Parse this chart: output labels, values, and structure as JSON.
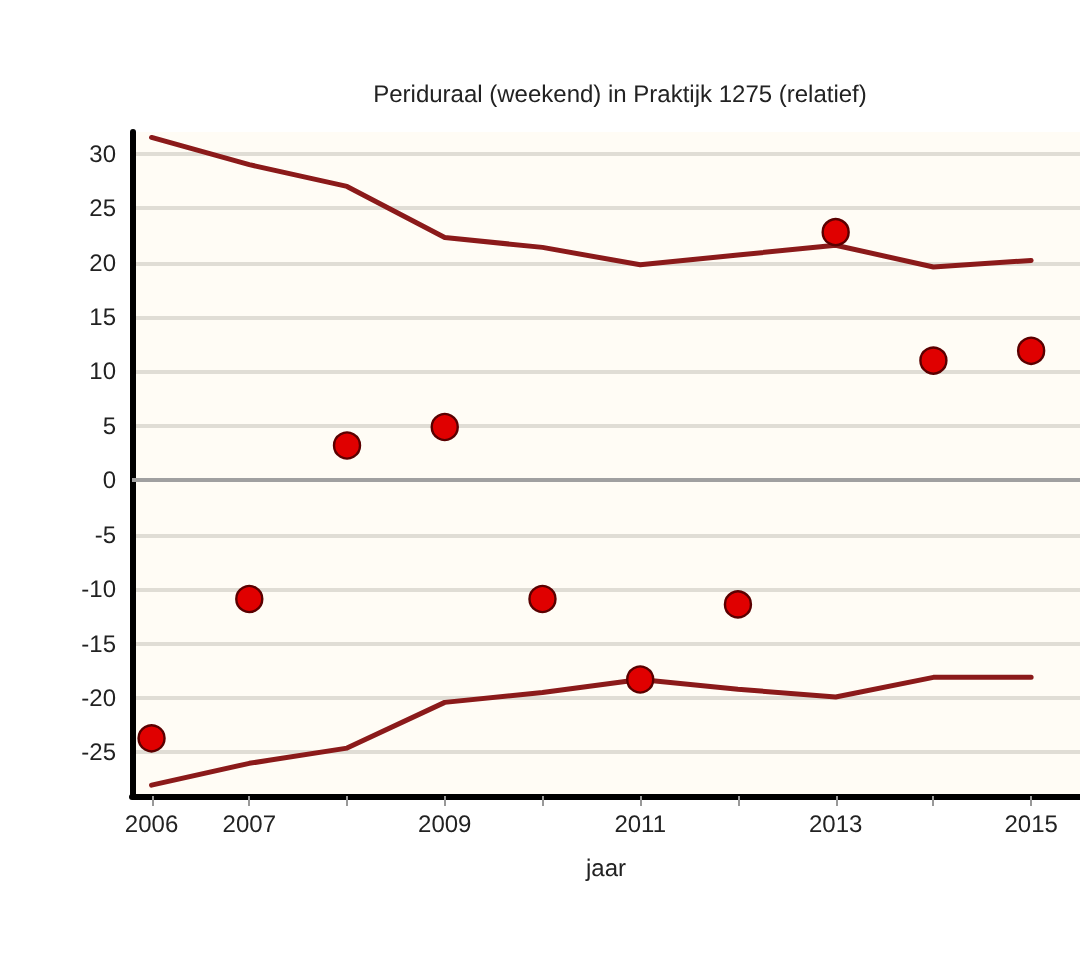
{
  "chart_data": {
    "type": "scatter",
    "title": "Periduraal (weekend) in Praktijk 1275 (relatief)",
    "xlabel": "jaar",
    "x": [
      2006,
      2007,
      2008,
      2009,
      2010,
      2011,
      2012,
      2013,
      2014,
      2015
    ],
    "series": [
      {
        "type": "line",
        "color": "#8b1a1a",
        "marker": "none",
        "values": [
          31.5,
          29,
          27,
          22.3,
          21.4,
          19.8,
          20.7,
          21.6,
          19.6,
          20.2
        ]
      },
      {
        "type": "line",
        "color": "#8b1a1a",
        "marker": "none",
        "values": [
          -28,
          -26,
          -24.6,
          -20.4,
          -19.5,
          -18.3,
          -19.2,
          -19.9,
          -18.1,
          -18.1
        ]
      },
      {
        "color": "#e00000",
        "marker": "circle",
        "values": [
          -23.7,
          -10.9,
          3.2,
          4.9,
          -10.9,
          -18.3,
          -11.4,
          22.8,
          11,
          11.9
        ]
      }
    ],
    "xlim": [
      2005.8,
      2015.5
    ],
    "xticks": [
      2006,
      2007,
      {
        "value": 2008,
        "label": null
      },
      2009,
      {
        "value": 2010,
        "label": null
      },
      2011,
      {
        "value": 2012,
        "label": null
      },
      2013,
      {
        "value": 2014,
        "label": null
      },
      2015
    ],
    "ylim": [
      -29,
      32
    ],
    "yticks": [
      -25,
      -20,
      -15,
      -10,
      -5,
      0,
      5,
      10,
      15,
      20,
      25,
      30
    ],
    "ref_lines": [
      {
        "axis": "y",
        "value": 0,
        "color": "#a0a0a0"
      }
    ],
    "grid": "y"
  }
}
